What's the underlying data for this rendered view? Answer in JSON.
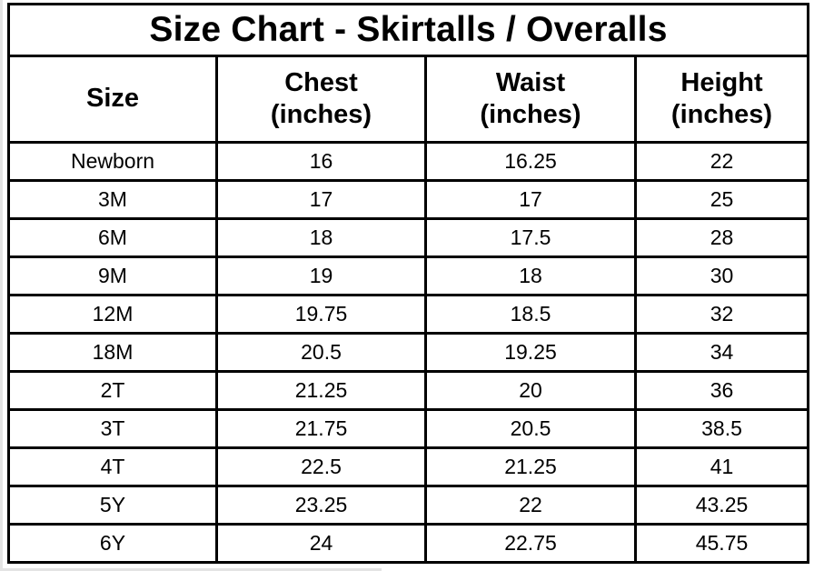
{
  "title": "Size Chart - Skirtalls / Overalls",
  "table": {
    "columns": [
      {
        "label": "Size",
        "sublabel": ""
      },
      {
        "label": "Chest",
        "sublabel": "(inches)"
      },
      {
        "label": "Waist",
        "sublabel": "(inches)"
      },
      {
        "label": "Height",
        "sublabel": "(inches)"
      }
    ],
    "rows": [
      [
        "Newborn",
        "16",
        "16.25",
        "22"
      ],
      [
        "3M",
        "17",
        "17",
        "25"
      ],
      [
        "6M",
        "18",
        "17.5",
        "28"
      ],
      [
        "9M",
        "19",
        "18",
        "30"
      ],
      [
        "12M",
        "19.75",
        "18.5",
        "32"
      ],
      [
        "18M",
        "20.5",
        "19.25",
        "34"
      ],
      [
        "2T",
        "21.25",
        "20",
        "36"
      ],
      [
        "3T",
        "21.75",
        "20.5",
        "38.5"
      ],
      [
        "4T",
        "22.5",
        "21.25",
        "41"
      ],
      [
        "5Y",
        "23.25",
        "22",
        "43.25"
      ],
      [
        "6Y",
        "24",
        "22.75",
        "45.75"
      ]
    ]
  },
  "colors": {
    "border": "#000000",
    "text": "#000000",
    "background": "#ffffff"
  },
  "chart_data": {
    "type": "table",
    "title": "Size Chart - Skirtalls / Overalls",
    "columns": [
      "Size",
      "Chest (inches)",
      "Waist (inches)",
      "Height (inches)"
    ],
    "rows": [
      [
        "Newborn",
        16,
        16.25,
        22
      ],
      [
        "3M",
        17,
        17,
        25
      ],
      [
        "6M",
        18,
        17.5,
        28
      ],
      [
        "9M",
        19,
        18,
        30
      ],
      [
        "12M",
        19.75,
        18.5,
        32
      ],
      [
        "18M",
        20.5,
        19.25,
        34
      ],
      [
        "2T",
        21.25,
        20,
        36
      ],
      [
        "3T",
        21.75,
        20.5,
        38.5
      ],
      [
        "4T",
        22.5,
        21.25,
        41
      ],
      [
        "5Y",
        23.25,
        22,
        43.25
      ],
      [
        "6Y",
        24,
        22.75,
        45.75
      ]
    ]
  }
}
